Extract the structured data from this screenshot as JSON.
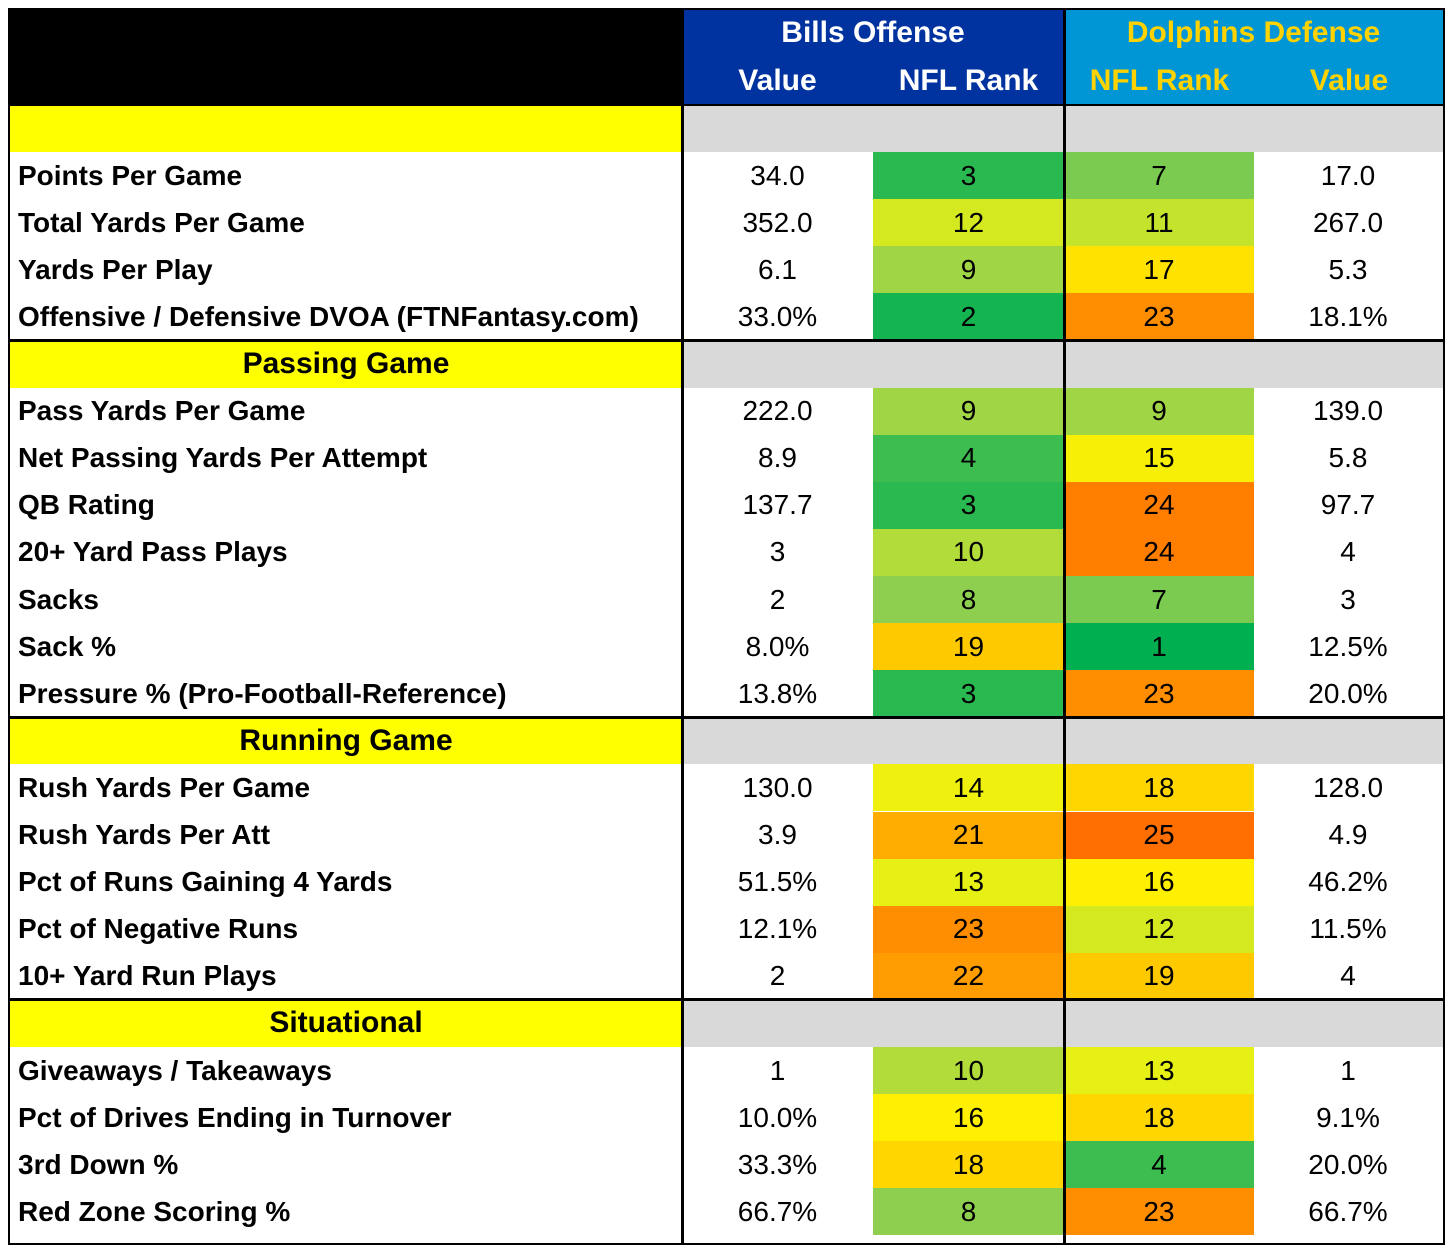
{
  "header": {
    "bills_title": "Bills Offense",
    "dolphins_title": "Dolphins Defense",
    "bills_col1": "Value",
    "bills_col2": "NFL Rank",
    "dolphins_col1": "NFL Rank",
    "dolphins_col2": "Value"
  },
  "colors": {
    "bills_header": "#0033a0",
    "dolphins_header": "#0096d6",
    "dolphins_text": "#ffd200",
    "section_yellow": "#ffff00",
    "section_gray": "#d9d9d9",
    "rank_scale": "green (best) to orange (worst)"
  },
  "chart_data": {
    "type": "table",
    "columns": [
      "",
      "Bills Offense Value",
      "Bills Offense NFL Rank",
      "Dolphins Defense NFL Rank",
      "Dolphins Defense Value"
    ],
    "sections": [
      {
        "title": "",
        "rows": [
          {
            "stat": "Points Per Game",
            "off_value": "34.0",
            "off_rank": "3",
            "def_rank": "7",
            "def_value": "17.0"
          },
          {
            "stat": "Total Yards Per Game",
            "off_value": "352.0",
            "off_rank": "12",
            "def_rank": "11",
            "def_value": "267.0"
          },
          {
            "stat": "Yards Per Play",
            "off_value": "6.1",
            "off_rank": "9",
            "def_rank": "17",
            "def_value": "5.3"
          },
          {
            "stat": "Offensive / Defensive DVOA (FTNFantasy.com)",
            "off_value": "33.0%",
            "off_rank": "2",
            "def_rank": "23",
            "def_value": "18.1%"
          }
        ]
      },
      {
        "title": "Passing Game",
        "rows": [
          {
            "stat": "Pass Yards Per Game",
            "off_value": "222.0",
            "off_rank": "9",
            "def_rank": "9",
            "def_value": "139.0"
          },
          {
            "stat": "Net Passing Yards Per Attempt",
            "off_value": "8.9",
            "off_rank": "4",
            "def_rank": "15",
            "def_value": "5.8"
          },
          {
            "stat": "QB Rating",
            "off_value": "137.7",
            "off_rank": "3",
            "def_rank": "24",
            "def_value": "97.7"
          },
          {
            "stat": "20+ Yard Pass Plays",
            "off_value": "3",
            "off_rank": "10",
            "def_rank": "24",
            "def_value": "4"
          },
          {
            "stat": "Sacks",
            "off_value": "2",
            "off_rank": "8",
            "def_rank": "7",
            "def_value": "3"
          },
          {
            "stat": "Sack %",
            "off_value": "8.0%",
            "off_rank": "19",
            "def_rank": "1",
            "def_value": "12.5%"
          },
          {
            "stat": "Pressure % (Pro-Football-Reference)",
            "off_value": "13.8%",
            "off_rank": "3",
            "def_rank": "23",
            "def_value": "20.0%"
          }
        ]
      },
      {
        "title": "Running Game",
        "rows": [
          {
            "stat": "Rush Yards Per Game",
            "off_value": "130.0",
            "off_rank": "14",
            "def_rank": "18",
            "def_value": "128.0"
          },
          {
            "stat": "Rush Yards Per Att",
            "off_value": "3.9",
            "off_rank": "21",
            "def_rank": "25",
            "def_value": "4.9"
          },
          {
            "stat": "Pct of Runs Gaining 4 Yards",
            "off_value": "51.5%",
            "off_rank": "13",
            "def_rank": "16",
            "def_value": "46.2%"
          },
          {
            "stat": "Pct of Negative Runs",
            "off_value": "12.1%",
            "off_rank": "23",
            "def_rank": "12",
            "def_value": "11.5%"
          },
          {
            "stat": "10+ Yard Run Plays",
            "off_value": "2",
            "off_rank": "22",
            "def_rank": "19",
            "def_value": "4"
          }
        ]
      },
      {
        "title": "Situational",
        "rows": [
          {
            "stat": "Giveaways / Takeaways",
            "off_value": "1",
            "off_rank": "10",
            "def_rank": "13",
            "def_value": "1"
          },
          {
            "stat": "Pct of Drives Ending in Turnover",
            "off_value": "10.0%",
            "off_rank": "16",
            "def_rank": "18",
            "def_value": "9.1%"
          },
          {
            "stat": "3rd Down %",
            "off_value": "33.3%",
            "off_rank": "18",
            "def_rank": "4",
            "def_value": "20.0%"
          },
          {
            "stat": "Red Zone Scoring %",
            "off_value": "66.7%",
            "off_rank": "8",
            "def_rank": "23",
            "def_value": "66.7%"
          }
        ]
      }
    ]
  }
}
